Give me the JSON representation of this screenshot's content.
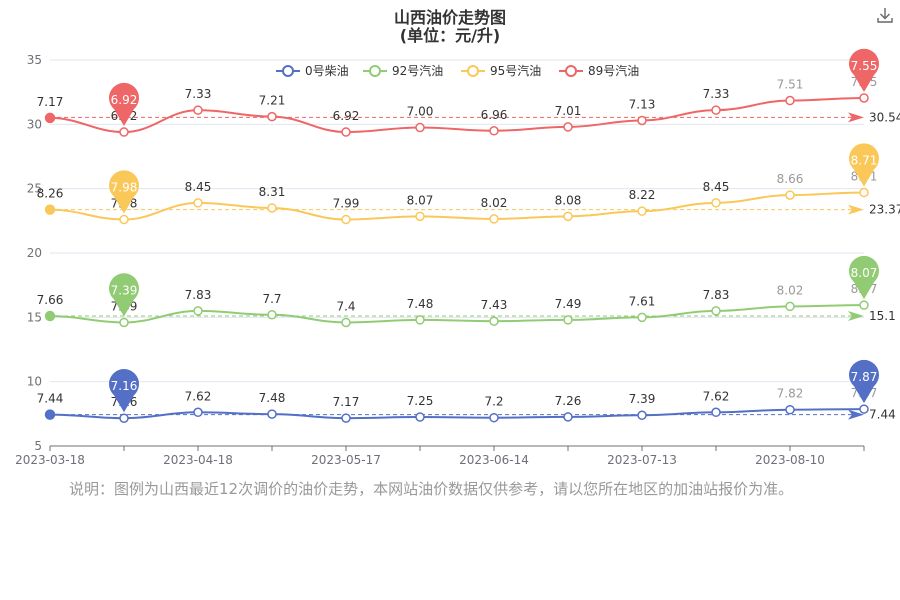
{
  "header": {
    "title": "山西油价走势图",
    "subtitle": "(单位：元/升)"
  },
  "note": "说明：图例为山西最近12次调价的油价走势，本网站油价数据仅供参考，请以您所在地区的加油站报价为准。",
  "toolbar": {
    "download_icon": "download-icon"
  },
  "chart_data": {
    "type": "line",
    "title": "山西油价走势图",
    "subtitle": "(单位：元/升)",
    "xlabel": "",
    "ylabel": "",
    "ylim": [
      5,
      35
    ],
    "yticks": [
      5,
      10,
      15,
      20,
      25,
      30,
      35
    ],
    "xticks": [
      "2023-03-18",
      "2023-04-18",
      "2023-05-17",
      "2023-06-14",
      "2023-07-13",
      "2023-08-10"
    ],
    "x": [
      "2023-03-18",
      "2023-04-03",
      "2023-04-18",
      "2023-05-04",
      "2023-05-17",
      "2023-06-01",
      "2023-06-14",
      "2023-06-29",
      "2023-07-13",
      "2023-07-27",
      "2023-08-10",
      "2023-08-24"
    ],
    "grid": true,
    "legend_position": "top",
    "series": [
      {
        "name": "0号柴油",
        "color": "#5470c6",
        "labels": [
          "7.44",
          "7.16",
          "7.62",
          "7.48",
          "7.17",
          "7.25",
          "7.2",
          "7.26",
          "7.39",
          "7.62",
          "7.82",
          "7.87"
        ],
        "values": [
          7.44,
          7.16,
          7.62,
          7.48,
          7.17,
          7.25,
          7.2,
          7.26,
          7.39,
          7.62,
          7.82,
          7.87
        ],
        "average": 7.44,
        "average_label": "7.44",
        "max_label": "7.87",
        "min_label": "7.16"
      },
      {
        "name": "92号汽油",
        "color": "#91cc75",
        "labels": [
          "7.66",
          "7.39",
          "7.83",
          "7.7",
          "7.4",
          "7.48",
          "7.43",
          "7.49",
          "7.61",
          "7.83",
          "8.02",
          "8.07"
        ],
        "values": [
          15.1,
          14.6,
          15.5,
          15.2,
          14.6,
          14.8,
          14.7,
          14.8,
          15.0,
          15.5,
          15.85,
          15.95
        ],
        "average": 15.1,
        "average_label": "15.1",
        "max_label": "8.07",
        "min_label": "7.39"
      },
      {
        "name": "95号汽油",
        "color": "#fac858",
        "labels": [
          "8.26",
          "7.98",
          "8.45",
          "8.31",
          "7.99",
          "8.07",
          "8.02",
          "8.08",
          "8.22",
          "8.45",
          "8.66",
          "8.71"
        ],
        "values": [
          23.37,
          22.6,
          23.9,
          23.5,
          22.6,
          22.85,
          22.65,
          22.85,
          23.25,
          23.9,
          24.5,
          24.7
        ],
        "average": 23.37,
        "average_label": "23.37",
        "max_label": "8.71",
        "min_label": "7.98"
      },
      {
        "name": "89号汽油",
        "color": "#ee6666",
        "labels": [
          "7.17",
          "6.92",
          "7.33",
          "7.21",
          "6.92",
          "7.00",
          "6.96",
          "7.01",
          "7.13",
          "7.33",
          "7.51",
          "7.55"
        ],
        "values": [
          30.5,
          29.4,
          31.1,
          30.6,
          29.4,
          29.75,
          29.5,
          29.8,
          30.3,
          31.1,
          31.85,
          32.05
        ],
        "average": 30.54,
        "average_label": "30.54",
        "max_label": "7.55",
        "min_label": "6.92"
      }
    ]
  }
}
